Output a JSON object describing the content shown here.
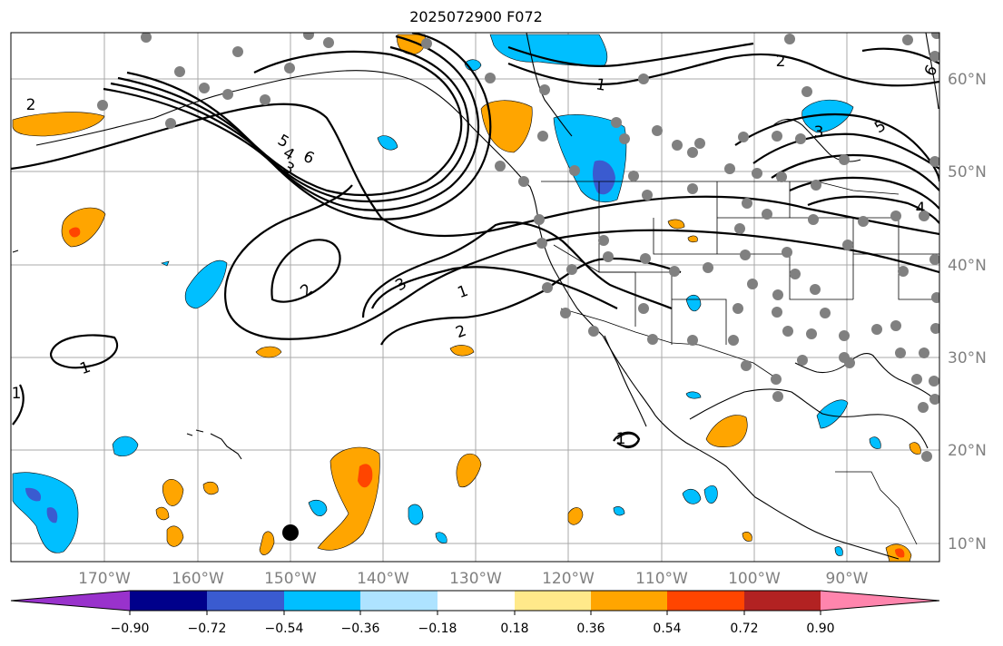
{
  "title": "2025072900 F072",
  "lon_labels": [
    "170°W",
    "160°W",
    "150°W",
    "140°W",
    "130°W",
    "120°W",
    "110°W",
    "100°W",
    "90°W"
  ],
  "lat_labels": [
    "60°N",
    "50°N",
    "40°N",
    "30°N",
    "20°N",
    "10°N"
  ],
  "colorbar": {
    "colors": [
      "#9932cc",
      "#00008b",
      "#3a5bd0",
      "#00bfff",
      "#aee3ff",
      "#ffffff",
      "#ffe98a",
      "#ffa500",
      "#ff4500",
      "#b22222",
      "#ff85ad"
    ],
    "tick_labels": [
      "−0.90",
      "−0.72",
      "−0.54",
      "−0.36",
      "−0.18",
      "0.18",
      "0.36",
      "0.54",
      "0.72",
      "0.90"
    ]
  },
  "contour_labels": [
    "2",
    "6",
    "5",
    "4",
    "3",
    "1",
    "2",
    "3",
    "1",
    "2",
    "1",
    "1",
    "2",
    "6",
    "5",
    "3",
    "4",
    "1"
  ]
}
